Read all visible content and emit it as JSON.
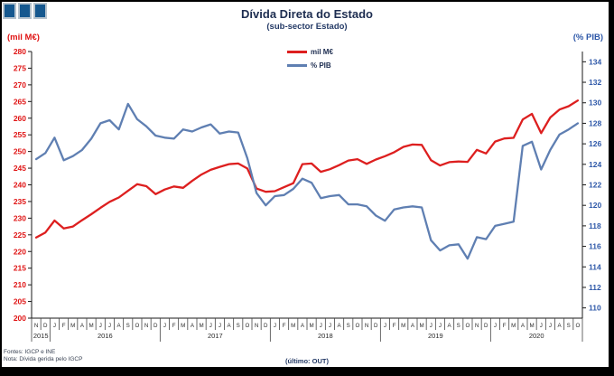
{
  "logo": {
    "name": "three-squares-logo",
    "square_color": "#15588f",
    "border_color": "#b4c2cd"
  },
  "footer": {
    "source": "Fontes: IGCP e INE",
    "note": "Nota: Dívida gerida pelo IGCP"
  },
  "chart_data": {
    "type": "line",
    "title": "Dívida Direta do Estado",
    "subtitle": "(sub-sector Estado)",
    "caption": "(último: OUT)",
    "legend_position": "top-center",
    "grid": false,
    "left_axis": {
      "label": "(mil M€)",
      "min": 200,
      "max": 280,
      "step": 5,
      "ticks": [
        280,
        275,
        270,
        265,
        260,
        255,
        250,
        245,
        240,
        235,
        230,
        225,
        220,
        215,
        210,
        205,
        200
      ],
      "color": "#e01414"
    },
    "right_axis": {
      "label": "(% PIB)",
      "min": 110,
      "max": 134,
      "step": 2,
      "plot_min": 109,
      "plot_max": 135,
      "ticks": [
        134,
        132,
        130,
        128,
        126,
        124,
        122,
        120,
        118,
        116,
        114,
        112,
        110
      ],
      "color": "#2e58a8"
    },
    "x_labels": [
      "N",
      "D",
      "J",
      "F",
      "M",
      "A",
      "M",
      "J",
      "J",
      "A",
      "S",
      "O",
      "N",
      "D",
      "J",
      "F",
      "M",
      "A",
      "M",
      "J",
      "J",
      "A",
      "S",
      "O",
      "N",
      "D",
      "J",
      "F",
      "M",
      "A",
      "M",
      "J",
      "J",
      "A",
      "S",
      "O",
      "N",
      "D",
      "J",
      "F",
      "M",
      "A",
      "M",
      "J",
      "J",
      "A",
      "S",
      "O",
      "N",
      "D",
      "J",
      "F",
      "M",
      "A",
      "M",
      "J",
      "J",
      "A",
      "S",
      "O"
    ],
    "years": [
      {
        "label": "2015",
        "start": 0,
        "end": 2
      },
      {
        "label": "2016",
        "start": 2,
        "end": 14
      },
      {
        "label": "2017",
        "start": 14,
        "end": 26
      },
      {
        "label": "2018",
        "start": 26,
        "end": 38
      },
      {
        "label": "2019",
        "start": 38,
        "end": 50
      },
      {
        "label": "2020",
        "start": 50,
        "end": 60
      }
    ],
    "series": [
      {
        "name": "mil M€",
        "axis": "left",
        "color": "#dd1f1f",
        "values": [
          224.2,
          225.7,
          229.3,
          226.9,
          227.5,
          229.4,
          231.2,
          233.1,
          234.9,
          236.2,
          238.2,
          240.2,
          239.6,
          237.2,
          238.6,
          239.5,
          239.1,
          241.2,
          243.1,
          244.5,
          245.4,
          246.2,
          246.4,
          244.9,
          238.9,
          237.9,
          238.1,
          239.3,
          240.5,
          246.2,
          246.4,
          243.9,
          244.7,
          245.9,
          247.3,
          247.7,
          246.3,
          247.6,
          248.6,
          249.8,
          251.4,
          252.1,
          252.0,
          247.4,
          245.8,
          246.8,
          247.0,
          246.9,
          250.5,
          249.4,
          253.0,
          253.9,
          254.1,
          259.6,
          261.3,
          255.5,
          260.2,
          262.6,
          263.6,
          265.3
        ]
      },
      {
        "name": "% PIB",
        "axis": "right",
        "color": "#5f7fb2",
        "values": [
          124.5,
          125.1,
          126.6,
          124.4,
          124.8,
          125.4,
          126.5,
          128.0,
          128.3,
          127.4,
          129.9,
          128.4,
          127.7,
          126.8,
          126.6,
          126.5,
          127.4,
          127.2,
          127.6,
          127.9,
          127.0,
          127.2,
          127.1,
          124.6,
          121.2,
          120.0,
          120.9,
          121.0,
          121.6,
          122.6,
          122.2,
          120.7,
          120.9,
          121.0,
          120.1,
          120.1,
          119.9,
          119.0,
          118.5,
          119.6,
          119.8,
          119.9,
          119.8,
          116.6,
          115.6,
          116.1,
          116.2,
          114.8,
          116.9,
          116.7,
          118.0,
          118.2,
          118.4,
          125.8,
          126.2,
          123.5,
          125.4,
          126.9,
          127.4,
          128.0
        ]
      }
    ]
  }
}
